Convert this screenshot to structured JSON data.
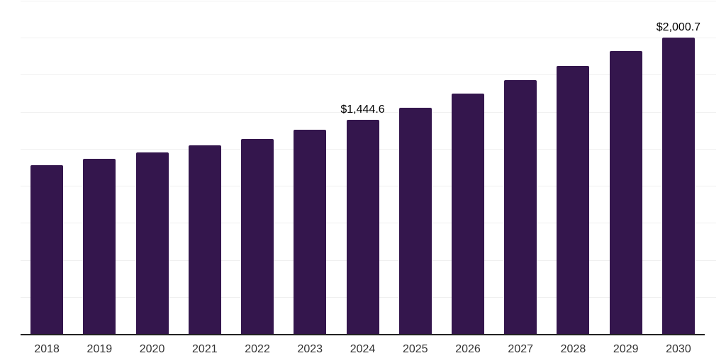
{
  "chart_data": {
    "type": "bar",
    "title": "",
    "xlabel": "",
    "ylabel": "",
    "categories": [
      "2018",
      "2019",
      "2020",
      "2021",
      "2022",
      "2023",
      "2024",
      "2025",
      "2026",
      "2027",
      "2028",
      "2029",
      "2030"
    ],
    "values": [
      1139,
      1182,
      1225,
      1274,
      1317,
      1378,
      1444.6,
      1528,
      1621,
      1716,
      1812,
      1908,
      2000.7
    ],
    "point_labels": [
      "",
      "",
      "",
      "",
      "",
      "",
      "$1,444.6",
      "",
      "",
      "",
      "",
      "",
      "$2,000.7"
    ],
    "ylim": [
      0,
      2250
    ],
    "grid_interval": 250,
    "grid": "horizontal-only",
    "legend": "none",
    "bar_color": "#34164d"
  },
  "colors": {
    "background": "#ffffff",
    "bar": "#34164d",
    "gridline": "#f0f0f0",
    "axis_line": "#222222",
    "axis_label": "#333333",
    "data_label": "#000000"
  }
}
